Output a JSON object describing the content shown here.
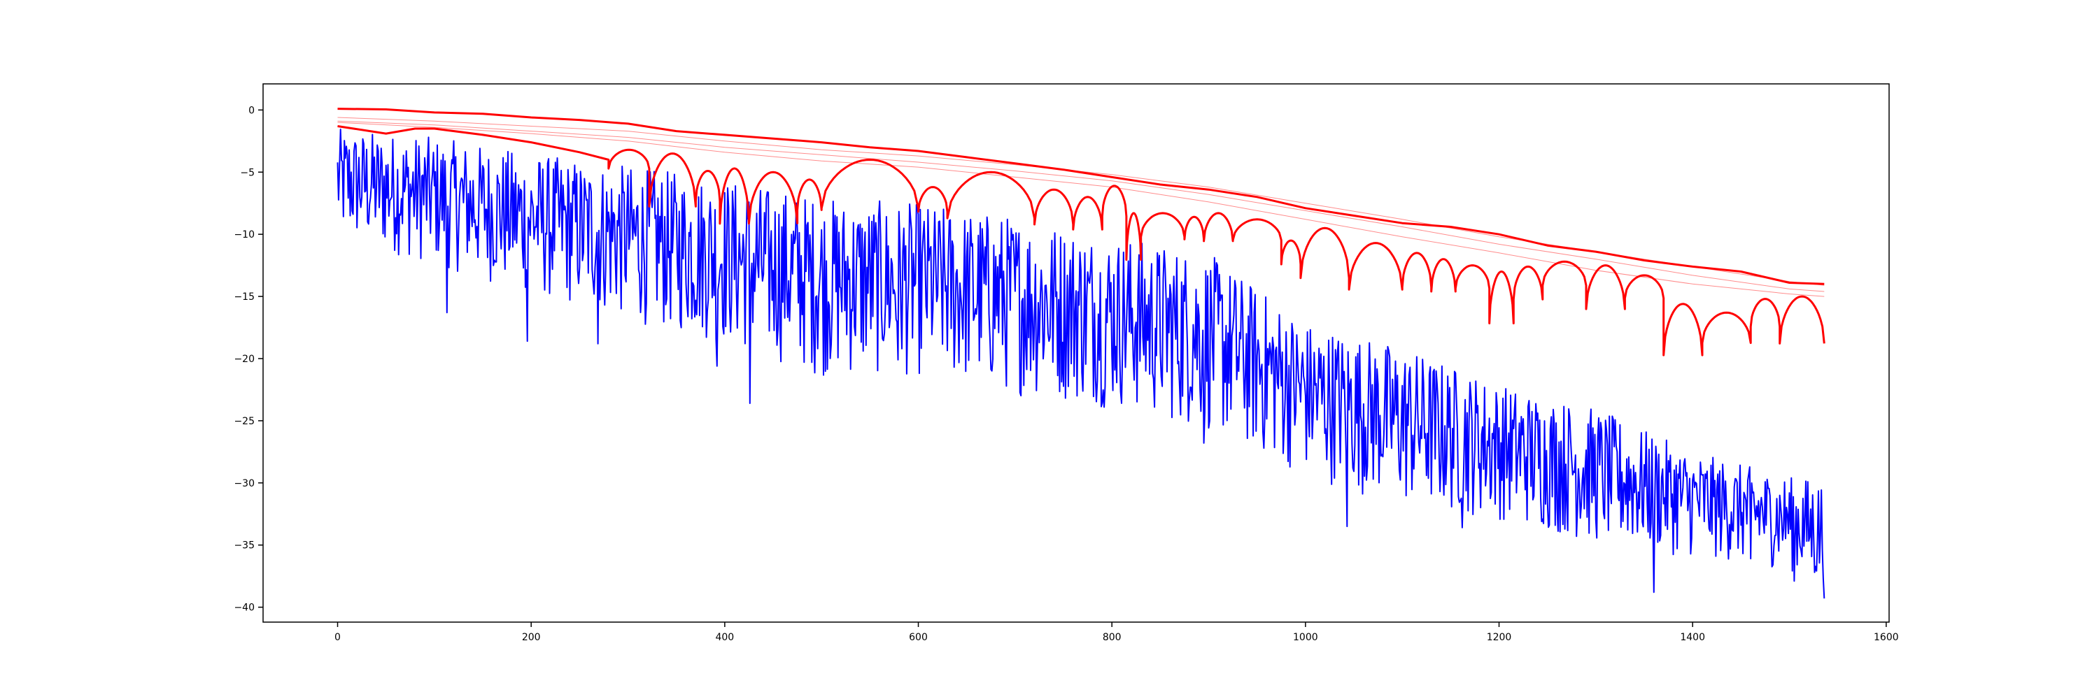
{
  "chart_data": {
    "type": "line",
    "title": "",
    "xlabel": "",
    "ylabel": "",
    "xlim": [
      -77,
      1603
    ],
    "ylim": [
      -41.2,
      2.1
    ],
    "x_ticks": [
      0,
      200,
      400,
      600,
      800,
      1000,
      1200,
      1400,
      1600
    ],
    "y_ticks": [
      0,
      -5,
      -10,
      -15,
      -20,
      -25,
      -30,
      -35,
      -40
    ],
    "x_tick_labels": [
      "0",
      "200",
      "400",
      "600",
      "800",
      "1000",
      "1200",
      "1400",
      "1600"
    ],
    "y_tick_labels": [
      "0",
      "−5",
      "−10",
      "−15",
      "−20",
      "−25",
      "−30",
      "−35",
      "−40"
    ],
    "grid": false,
    "legend": "none",
    "colors": {
      "blue_series": "#0000ff",
      "red_series": "#ff0000"
    },
    "series": [
      {
        "color": "#0000ff",
        "style": "noisy",
        "x": [
          0,
          100,
          200,
          300,
          400,
          500,
          600,
          700,
          800,
          900,
          1000,
          1100,
          1200,
          1300,
          1400,
          1500,
          1536
        ],
        "upper": [
          -1.5,
          -2.2,
          -3.5,
          -4.5,
          -5.5,
          -7,
          -7.5,
          -8.5,
          -10,
          -11.5,
          -17,
          -19,
          -22,
          -24,
          -27.5,
          -29.5,
          -29.6
        ],
        "lower": [
          -10.5,
          -12.5,
          -15,
          -17,
          -19,
          -21.5,
          -21.5,
          -23,
          -24,
          -26,
          -29.5,
          -32,
          -33,
          -35,
          -36,
          -37,
          -39.2
        ],
        "spikes": [
          {
            "x": 113,
            "y": -16.3
          },
          {
            "x": 196,
            "y": -18.6
          },
          {
            "x": 269,
            "y": -18.8
          },
          {
            "x": 392,
            "y": -20.6
          },
          {
            "x": 426,
            "y": -23.6
          },
          {
            "x": 579,
            "y": -20.1
          },
          {
            "x": 792,
            "y": -23.9
          },
          {
            "x": 895,
            "y": -26.8
          },
          {
            "x": 1043,
            "y": -33.5
          },
          {
            "x": 1162,
            "y": -33.6
          },
          {
            "x": 1360,
            "y": -38.8
          },
          {
            "x": 1460,
            "y": -36.1
          },
          {
            "x": 1505,
            "y": -37.9
          },
          {
            "x": 1536,
            "y": -39.3
          }
        ]
      },
      {
        "color": "#ff0000",
        "style": "upper-envelope",
        "x": [
          0,
          50,
          100,
          150,
          200,
          250,
          300,
          350,
          400,
          450,
          500,
          550,
          600,
          650,
          700,
          750,
          800,
          850,
          900,
          950,
          1000,
          1050,
          1100,
          1150,
          1200,
          1250,
          1300,
          1350,
          1400,
          1450,
          1500,
          1536
        ],
        "y": [
          0.1,
          0.05,
          -0.2,
          -0.3,
          -0.6,
          -0.8,
          -1.1,
          -1.7,
          -2.0,
          -2.3,
          -2.6,
          -3.0,
          -3.3,
          -3.8,
          -4.3,
          -4.8,
          -5.4,
          -6.0,
          -6.4,
          -7.0,
          -7.9,
          -8.5,
          -9.1,
          -9.4,
          -10.0,
          -10.9,
          -11.4,
          -12.1,
          -12.6,
          -13.0,
          -13.9,
          -14.0
        ]
      },
      {
        "color": "#ff0000",
        "style": "dipping",
        "x": [
          0,
          50,
          80,
          100,
          150,
          200,
          250,
          280
        ],
        "y": [
          -1.3,
          -1.9,
          -1.5,
          -1.5,
          -2.0,
          -2.6,
          -3.4,
          -4.0
        ],
        "segments": [
          {
            "from": 280,
            "to": 322,
            "top": -3.2
          },
          {
            "from": 322,
            "to": 370,
            "top": -3.5
          },
          {
            "from": 370,
            "to": 395,
            "top": -4.9
          },
          {
            "from": 395,
            "to": 425,
            "top": -4.7
          },
          {
            "from": 425,
            "to": 475,
            "top": -5.0
          },
          {
            "from": 475,
            "to": 500,
            "top": -5.6
          },
          {
            "from": 500,
            "to": 600,
            "top": -4.0
          },
          {
            "from": 600,
            "to": 630,
            "top": -6.2
          },
          {
            "from": 630,
            "to": 720,
            "top": -5.0
          },
          {
            "from": 720,
            "to": 760,
            "top": -6.4
          },
          {
            "from": 760,
            "to": 790,
            "top": -7.0
          },
          {
            "from": 790,
            "to": 815,
            "top": -6.1
          },
          {
            "from": 815,
            "to": 830,
            "top": -8.3
          },
          {
            "from": 830,
            "to": 875,
            "top": -8.3
          },
          {
            "from": 875,
            "to": 895,
            "top": -8.6
          },
          {
            "from": 895,
            "to": 925,
            "top": -8.3
          },
          {
            "from": 925,
            "to": 975,
            "top": -8.8
          },
          {
            "from": 975,
            "to": 995,
            "top": -10.5
          },
          {
            "from": 995,
            "to": 1045,
            "top": -9.5
          },
          {
            "from": 1045,
            "to": 1100,
            "top": -10.7
          },
          {
            "from": 1100,
            "to": 1130,
            "top": -11.5
          },
          {
            "from": 1130,
            "to": 1155,
            "top": -12.0
          },
          {
            "from": 1155,
            "to": 1190,
            "top": -12.5
          },
          {
            "from": 1190,
            "to": 1215,
            "top": -13.0
          },
          {
            "from": 1215,
            "to": 1245,
            "top": -12.6
          },
          {
            "from": 1245,
            "to": 1290,
            "top": -12.2
          },
          {
            "from": 1290,
            "to": 1330,
            "top": -12.5
          },
          {
            "from": 1330,
            "to": 1370,
            "top": -13.3
          },
          {
            "from": 1370,
            "to": 1410,
            "top": -15.6
          },
          {
            "from": 1410,
            "to": 1460,
            "top": -16.3
          },
          {
            "from": 1460,
            "to": 1490,
            "top": -15.2
          },
          {
            "from": 1490,
            "to": 1536,
            "top": -15.0
          }
        ]
      },
      {
        "color": "#ff0000",
        "style": "faint-curve",
        "x": [
          0,
          100,
          200,
          300,
          400,
          500,
          600,
          700,
          800,
          900,
          1000,
          1100,
          1200,
          1300,
          1400,
          1500,
          1536
        ],
        "y": [
          -0.6,
          -0.9,
          -1.3,
          -1.7,
          -2.5,
          -3.2,
          -3.7,
          -4.4,
          -5.2,
          -6.2,
          -7.5,
          -8.8,
          -10.2,
          -11.4,
          -12.6,
          -13.8,
          -14.1
        ]
      },
      {
        "color": "#ff0000",
        "style": "faint-curve",
        "x": [
          0,
          100,
          200,
          300,
          400,
          500,
          600,
          700,
          800,
          900,
          1000,
          1100,
          1200,
          1300,
          1400,
          1500,
          1536
        ],
        "y": [
          -0.9,
          -1.2,
          -1.7,
          -2.2,
          -3.0,
          -3.6,
          -4.2,
          -4.9,
          -5.7,
          -6.8,
          -8.1,
          -9.4,
          -10.8,
          -12.0,
          -13.3,
          -14.4,
          -14.6
        ]
      },
      {
        "color": "#ff0000",
        "style": "faint-curve",
        "x": [
          0,
          100,
          200,
          300,
          400,
          500,
          600,
          700,
          800,
          900,
          1000,
          1100,
          1200,
          1300,
          1400,
          1500,
          1536
        ],
        "y": [
          -1.0,
          -1.4,
          -1.9,
          -2.5,
          -3.4,
          -4.1,
          -4.6,
          -5.4,
          -6.2,
          -7.4,
          -8.8,
          -10.2,
          -11.5,
          -12.9,
          -14.0,
          -14.8,
          -15.0
        ]
      }
    ]
  }
}
